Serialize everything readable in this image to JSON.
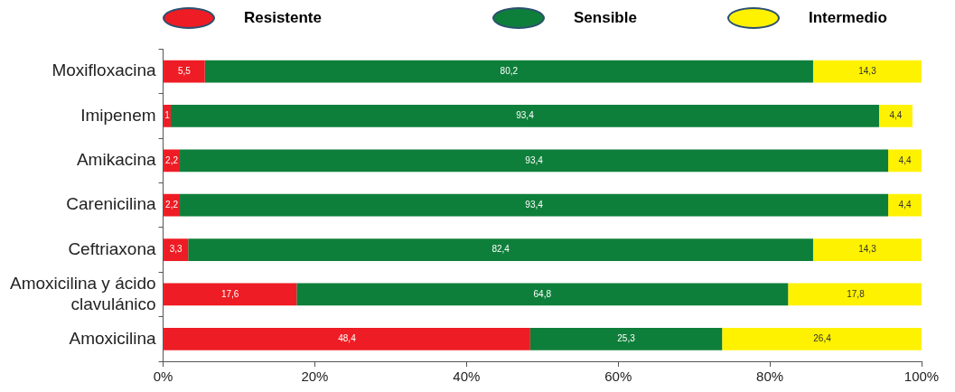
{
  "chart_data": {
    "type": "bar",
    "orientation": "horizontal",
    "stacked": true,
    "legend": "top",
    "categories": [
      "Moxifloxacina",
      "Imipenem",
      "Amikacina",
      "Carenicilina",
      "Ceftriaxona",
      "Amoxicilina y ácido clavulánico",
      "Amoxicilina"
    ],
    "series": [
      {
        "name": "Resistente",
        "color": "#ee1c24",
        "values": [
          5.5,
          1,
          2.2,
          2.2,
          3.3,
          17.6,
          48.4
        ],
        "value_labels": [
          "5,5",
          "1",
          "2,2",
          "2,2",
          "3,3",
          "17,6",
          "48,4"
        ]
      },
      {
        "name": "Sensible",
        "color": "#0e7f3a",
        "values": [
          80.2,
          93.4,
          93.4,
          93.4,
          82.4,
          64.8,
          25.3
        ],
        "value_labels": [
          "80,2",
          "93,4",
          "93,4",
          "93,4",
          "82,4",
          "64,8",
          "25,3"
        ]
      },
      {
        "name": "Intermedio",
        "color": "#fff200",
        "values": [
          14.3,
          4.4,
          4.4,
          4.4,
          14.3,
          17.8,
          26.4
        ],
        "value_labels": [
          "14,3",
          "4,4",
          "4,4",
          "4,4",
          "14,3",
          "17,8",
          "26,4"
        ]
      }
    ],
    "xlim": [
      0,
      100
    ],
    "xticks": [
      {
        "value": 0,
        "label": "0%"
      },
      {
        "value": 20,
        "label": "20%"
      },
      {
        "value": 40,
        "label": "40%"
      },
      {
        "value": 60,
        "label": "60%"
      },
      {
        "value": 80,
        "label": "80%"
      },
      {
        "value": 100,
        "label": "100%"
      }
    ],
    "grid": false
  }
}
